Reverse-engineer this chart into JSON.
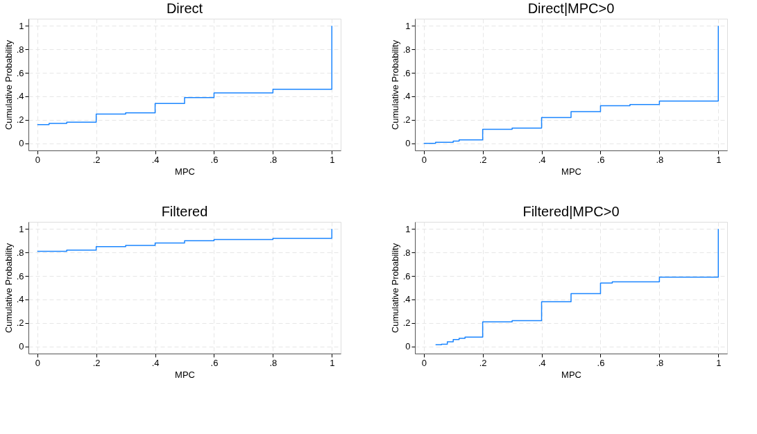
{
  "chart_data": [
    {
      "type": "step",
      "title": "Direct",
      "xlabel": "MPC",
      "ylabel": "Cumulative Probability",
      "grid": true,
      "xlim": [
        -0.03,
        1.03
      ],
      "ylim": [
        -0.06,
        1.06
      ],
      "xticks": [
        {
          "value": 0,
          "label": "0"
        },
        {
          "value": 0.2,
          "label": ".2"
        },
        {
          "value": 0.4,
          "label": ".4"
        },
        {
          "value": 0.6,
          "label": ".6"
        },
        {
          "value": 0.8,
          "label": ".8"
        },
        {
          "value": 1,
          "label": "1"
        }
      ],
      "yticks": [
        {
          "value": 0,
          "label": "0"
        },
        {
          "value": 0.2,
          "label": ".2"
        },
        {
          "value": 0.4,
          "label": ".4"
        },
        {
          "value": 0.6,
          "label": ".6"
        },
        {
          "value": 0.8,
          "label": ".8"
        },
        {
          "value": 1,
          "label": "1"
        }
      ],
      "x": [
        0,
        0.04,
        0.1,
        0.2,
        0.3,
        0.4,
        0.5,
        0.6,
        0.7,
        0.8,
        0.9,
        1
      ],
      "series": [
        {
          "color": "#1a85ff",
          "values": [
            0.16,
            0.17,
            0.18,
            0.25,
            0.26,
            0.34,
            0.39,
            0.43,
            0.43,
            0.46,
            0.46,
            1
          ]
        }
      ]
    },
    {
      "type": "step",
      "title": "Direct|MPC>0",
      "xlabel": "MPC",
      "ylabel": "Cumulative Probability",
      "grid": true,
      "xlim": [
        -0.03,
        1.03
      ],
      "ylim": [
        -0.06,
        1.06
      ],
      "xticks": [
        {
          "value": 0,
          "label": "0"
        },
        {
          "value": 0.2,
          "label": ".2"
        },
        {
          "value": 0.4,
          "label": ".4"
        },
        {
          "value": 0.6,
          "label": ".6"
        },
        {
          "value": 0.8,
          "label": ".8"
        },
        {
          "value": 1,
          "label": "1"
        }
      ],
      "yticks": [
        {
          "value": 0,
          "label": "0"
        },
        {
          "value": 0.2,
          "label": ".2"
        },
        {
          "value": 0.4,
          "label": ".4"
        },
        {
          "value": 0.6,
          "label": ".6"
        },
        {
          "value": 0.8,
          "label": ".8"
        },
        {
          "value": 1,
          "label": "1"
        }
      ],
      "x": [
        0,
        0.04,
        0.1,
        0.12,
        0.2,
        0.3,
        0.4,
        0.5,
        0.6,
        0.7,
        0.8,
        0.9,
        1
      ],
      "series": [
        {
          "color": "#1a85ff",
          "values": [
            0.0,
            0.01,
            0.02,
            0.03,
            0.12,
            0.13,
            0.22,
            0.27,
            0.32,
            0.33,
            0.36,
            0.36,
            1
          ]
        }
      ]
    },
    {
      "type": "step",
      "title": "Filtered",
      "xlabel": "MPC",
      "ylabel": "Cumulative Probability",
      "grid": true,
      "xlim": [
        -0.03,
        1.03
      ],
      "ylim": [
        -0.06,
        1.06
      ],
      "xticks": [
        {
          "value": 0,
          "label": "0"
        },
        {
          "value": 0.2,
          "label": ".2"
        },
        {
          "value": 0.4,
          "label": ".4"
        },
        {
          "value": 0.6,
          "label": ".6"
        },
        {
          "value": 0.8,
          "label": ".8"
        },
        {
          "value": 1,
          "label": "1"
        }
      ],
      "yticks": [
        {
          "value": 0,
          "label": "0"
        },
        {
          "value": 0.2,
          "label": ".2"
        },
        {
          "value": 0.4,
          "label": ".4"
        },
        {
          "value": 0.6,
          "label": ".6"
        },
        {
          "value": 0.8,
          "label": ".8"
        },
        {
          "value": 1,
          "label": "1"
        }
      ],
      "x": [
        0,
        0.04,
        0.1,
        0.2,
        0.3,
        0.4,
        0.5,
        0.6,
        0.8,
        1
      ],
      "series": [
        {
          "color": "#1a85ff",
          "values": [
            0.81,
            0.81,
            0.82,
            0.85,
            0.86,
            0.88,
            0.9,
            0.91,
            0.92,
            1
          ]
        }
      ]
    },
    {
      "type": "step",
      "title": "Filtered|MPC>0",
      "xlabel": "MPC",
      "ylabel": "Cumulative Probability",
      "grid": true,
      "xlim": [
        -0.03,
        1.03
      ],
      "ylim": [
        -0.06,
        1.06
      ],
      "xticks": [
        {
          "value": 0,
          "label": "0"
        },
        {
          "value": 0.2,
          "label": ".2"
        },
        {
          "value": 0.4,
          "label": ".4"
        },
        {
          "value": 0.6,
          "label": ".6"
        },
        {
          "value": 0.8,
          "label": ".8"
        },
        {
          "value": 1,
          "label": "1"
        }
      ],
      "yticks": [
        {
          "value": 0,
          "label": "0"
        },
        {
          "value": 0.2,
          "label": ".2"
        },
        {
          "value": 0.4,
          "label": ".4"
        },
        {
          "value": 0.6,
          "label": ".6"
        },
        {
          "value": 0.8,
          "label": ".8"
        },
        {
          "value": 1,
          "label": "1"
        }
      ],
      "x": [
        0.04,
        0.06,
        0.08,
        0.1,
        0.12,
        0.14,
        0.2,
        0.3,
        0.4,
        0.5,
        0.6,
        0.64,
        0.7,
        0.8,
        1
      ],
      "series": [
        {
          "color": "#1a85ff",
          "values": [
            0.015,
            0.02,
            0.04,
            0.06,
            0.07,
            0.08,
            0.21,
            0.22,
            0.38,
            0.45,
            0.54,
            0.55,
            0.55,
            0.59,
            1
          ]
        }
      ]
    }
  ]
}
